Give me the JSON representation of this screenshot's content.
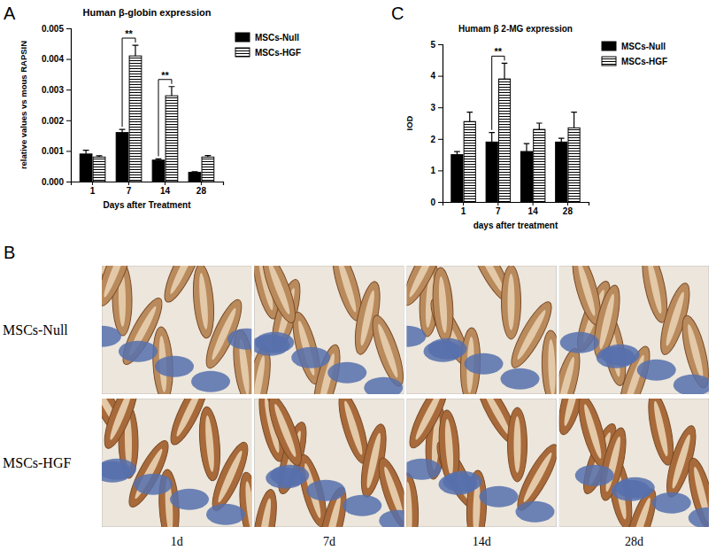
{
  "chart_data": [
    {
      "type": "bar",
      "title": "Human β-globin expression",
      "y_label": "relative values vs mous RAPSIN",
      "x_label": "Days after Treatment",
      "categories": [
        "1",
        "7",
        "14",
        "28"
      ],
      "series": [
        {
          "name": "MSCs-Null",
          "color": "#000000",
          "values": [
            0.0009,
            0.0016,
            0.0007,
            0.0003
          ],
          "errors": [
            0.00012,
            0.0001,
            4e-05,
            2e-05
          ]
        },
        {
          "name": "MSCs-HGF",
          "color": "#ffffff",
          "values": [
            0.0008,
            0.0041,
            0.0028,
            0.0008
          ],
          "errors": [
            4e-05,
            0.00035,
            0.0003,
            5e-05
          ]
        }
      ],
      "ylim": [
        0,
        0.005
      ],
      "yticks": [
        {
          "value": 0,
          "label": "0.000"
        },
        {
          "value": 0.001,
          "label": "0.001"
        },
        {
          "value": 0.002,
          "label": "0.002"
        },
        {
          "value": 0.003,
          "label": "0.003"
        },
        {
          "value": 0.004,
          "label": "0.004"
        },
        {
          "value": 0.005,
          "label": "0.005"
        }
      ],
      "legend": "right",
      "grid": false,
      "annotations": [
        {
          "text": "**",
          "x": "7"
        },
        {
          "text": "**",
          "x": "14"
        }
      ]
    },
    {
      "type": "bar",
      "title": "Humam β 2-MG expression",
      "y_label": "IOD",
      "x_label": "days after treatment",
      "categories": [
        "1",
        "7",
        "14",
        "28"
      ],
      "series": [
        {
          "name": "MSCs-Null",
          "color": "#000000",
          "values": [
            1.5,
            1.9,
            1.6,
            1.9
          ],
          "errors": [
            0.1,
            0.3,
            0.25,
            0.12
          ]
        },
        {
          "name": "MSCs-HGF",
          "color": "#ffffff",
          "values": [
            2.55,
            3.9,
            2.3,
            2.35
          ],
          "errors": [
            0.3,
            0.5,
            0.2,
            0.5
          ]
        }
      ],
      "ylim": [
        0,
        5
      ],
      "yticks": [
        0,
        1,
        2,
        3,
        4,
        5
      ],
      "legend": "right",
      "grid": false,
      "annotations": [
        {
          "text": "**",
          "x": "7"
        }
      ]
    }
  ],
  "panel_labels": [
    "A",
    "C",
    "B"
  ],
  "micrographs": {
    "rows": [
      "MSCs-Null",
      "MSCs-HGF"
    ],
    "columns": [
      "1d",
      "7d",
      "14d",
      "28d"
    ]
  }
}
